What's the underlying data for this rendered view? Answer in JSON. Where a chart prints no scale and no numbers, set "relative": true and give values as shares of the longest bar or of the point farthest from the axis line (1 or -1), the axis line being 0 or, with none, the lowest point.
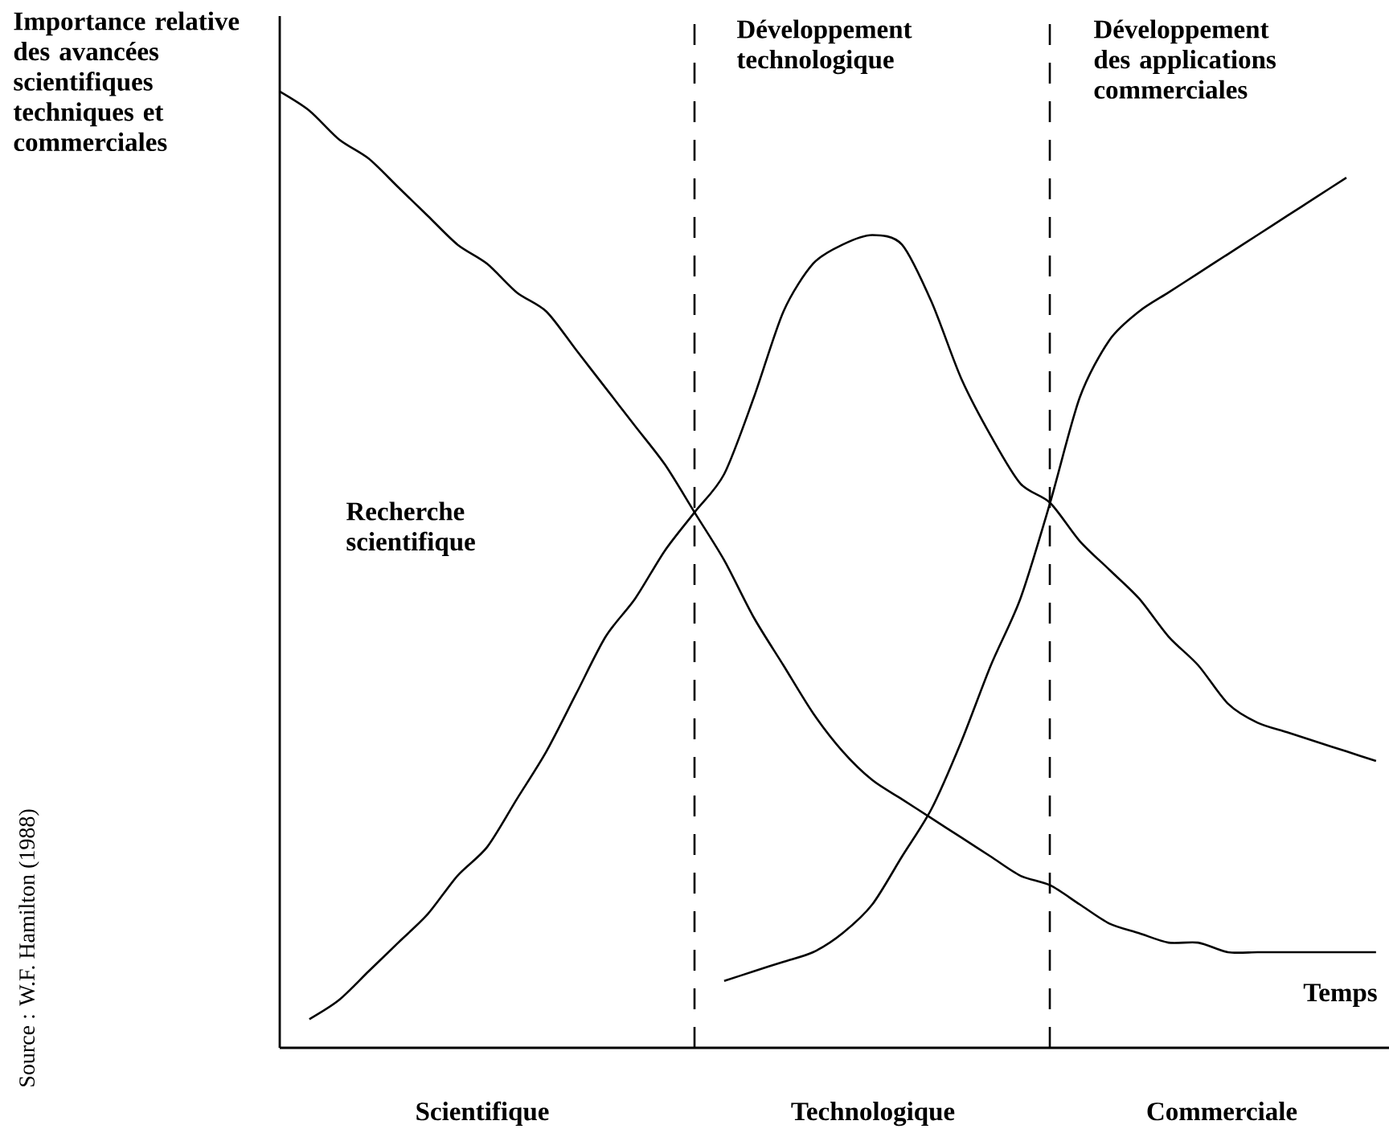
{
  "chart_data": {
    "type": "line",
    "relative": true,
    "categories": [
      null,
      null,
      null,
      null,
      null,
      null,
      null,
      null,
      null,
      null,
      null,
      null,
      null,
      null,
      null,
      null,
      null,
      null,
      null,
      null,
      null,
      null,
      null,
      null,
      null,
      null,
      null,
      null,
      null,
      null,
      null,
      null,
      null,
      null,
      null,
      null,
      null,
      null
    ],
    "series": [
      {
        "color": "#000000",
        "values": [
          1.0,
          0.98,
          0.95,
          0.93,
          0.9,
          0.87,
          0.84,
          0.82,
          0.79,
          0.77,
          0.73,
          0.69,
          0.65,
          0.61,
          0.56,
          0.51,
          0.45,
          0.4,
          0.35,
          0.31,
          0.28,
          0.26,
          0.24,
          0.22,
          0.2,
          0.18,
          0.17,
          0.15,
          0.13,
          0.12,
          0.11,
          0.11,
          0.1,
          0.1,
          0.1,
          0.1,
          0.1,
          0.1
        ]
      },
      {
        "color": "#000000",
        "values": [
          null,
          0.03,
          0.05,
          0.08,
          0.11,
          0.14,
          0.18,
          0.21,
          0.26,
          0.31,
          0.37,
          0.43,
          0.47,
          0.52,
          0.56,
          0.6,
          0.68,
          0.77,
          0.82,
          0.84,
          0.85,
          0.84,
          0.78,
          0.7,
          0.64,
          0.59,
          0.57,
          0.53,
          0.5,
          0.47,
          0.43,
          0.4,
          0.36,
          0.34,
          0.33,
          0.32,
          0.31,
          0.3
        ]
      },
      {
        "color": "#000000",
        "values": [
          null,
          null,
          null,
          null,
          null,
          null,
          null,
          null,
          null,
          null,
          null,
          null,
          null,
          null,
          null,
          0.07,
          0.08,
          0.09,
          0.1,
          0.12,
          0.15,
          0.2,
          0.25,
          0.32,
          0.4,
          0.47,
          0.57,
          0.68,
          0.74,
          0.77,
          0.79,
          0.81,
          0.83,
          0.85,
          0.87,
          0.89,
          0.91,
          null
        ]
      }
    ],
    "annotations": [
      "Importance relative des avancées scientifiques techniques et commerciales",
      "Recherche scientifique",
      "Développement technologique",
      "Développement des applications commerciales",
      "Temps",
      "Scientifique",
      "Technologique",
      "Commerciale",
      "Source : W.F. Hamilton (1988)"
    ]
  }
}
